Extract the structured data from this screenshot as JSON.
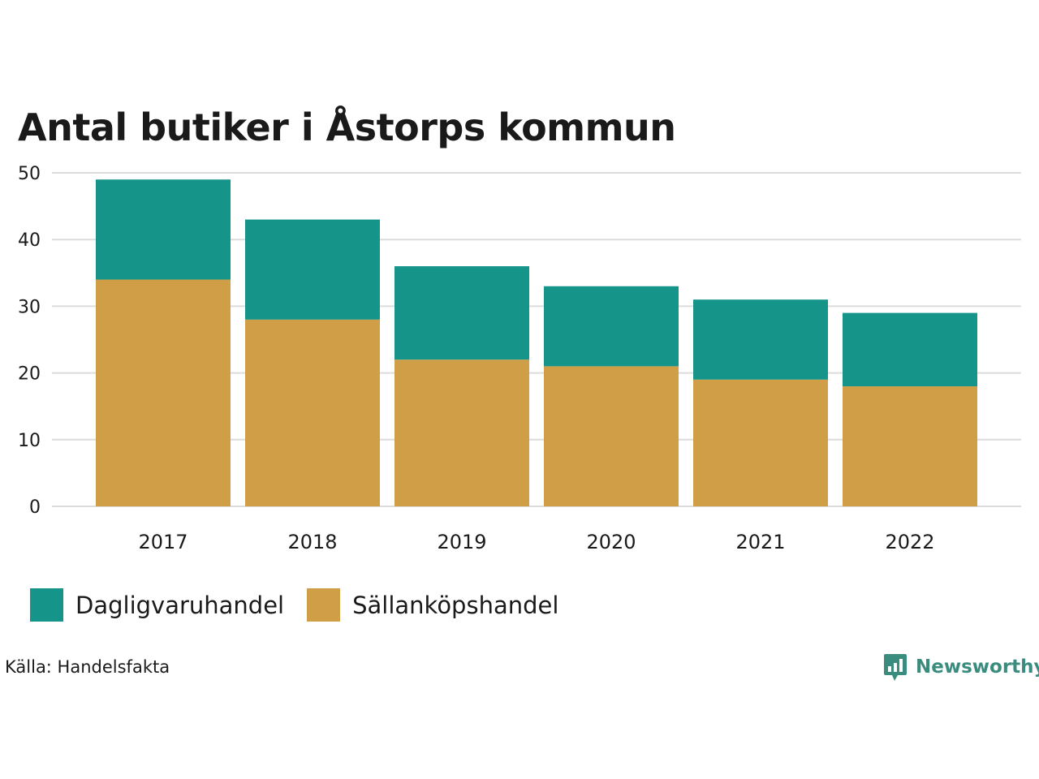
{
  "title": "Antal butiker i Åstorps kommun",
  "chart_data": {
    "type": "bar",
    "stacked": true,
    "categories": [
      "2017",
      "2018",
      "2019",
      "2020",
      "2021",
      "2022"
    ],
    "series": [
      {
        "name": "Sällanköpshandel",
        "color": "#d19e48",
        "values": [
          34,
          28,
          22,
          21,
          19,
          18
        ]
      },
      {
        "name": "Dagligvaruhandel",
        "color": "#159589",
        "values": [
          15,
          15,
          14,
          12,
          12,
          11
        ]
      }
    ],
    "yticks": [
      "0",
      "10",
      "20",
      "30",
      "40",
      "50"
    ],
    "ylim": [
      0,
      50
    ],
    "grid": true,
    "legend_position": "bottom-left"
  },
  "legend": [
    {
      "label": "Dagligvaruhandel",
      "color": "#159589"
    },
    {
      "label": "Sällanköpshandel",
      "color": "#d19e48"
    }
  ],
  "source": "Källa: Handelsfakta",
  "logo": {
    "label": "Newsworthy",
    "icon": "bar-chart-speech-bubble-icon",
    "color": "#3a8c7e"
  }
}
